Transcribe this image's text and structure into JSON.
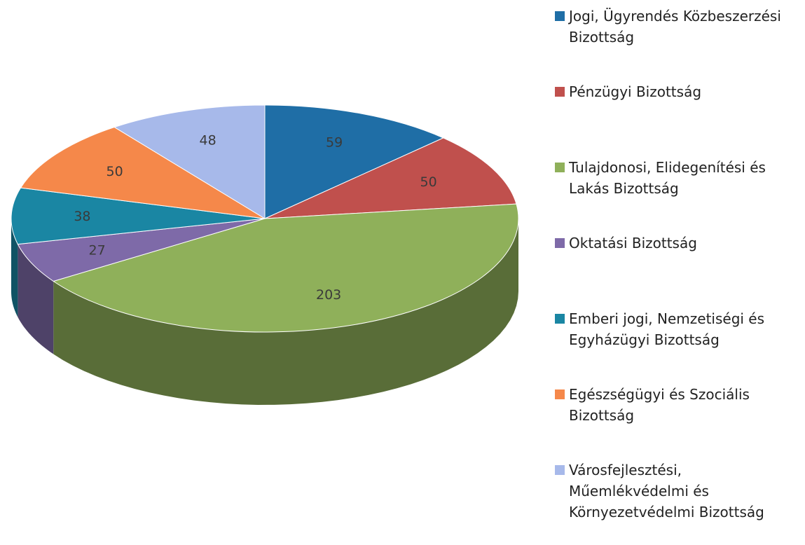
{
  "chart_data": {
    "type": "pie",
    "categories": [
      "Jogi, Ügyrendés Közbeszerzési Bizottság",
      "Pénzügyi Bizottság",
      "Tulajdonosi, Elidegenítési és Lakás Bizottság",
      "Oktatási Bizottság",
      "Emberi jogi, Nemzetiségi és Egyházügyi Bizottság",
      "Egészségügyi és Szociális Bizottság",
      "Városfejlesztési, Műemlékvédelmi és Környezetvédelmi Bizottság"
    ],
    "values": [
      59,
      50,
      203,
      27,
      38,
      50,
      48
    ],
    "colors": [
      "#1f6ea6",
      "#c0504d",
      "#8fb05a",
      "#7e6aa8",
      "#1a86a3",
      "#f5884a",
      "#a7b9ea"
    ],
    "legend": "right"
  }
}
